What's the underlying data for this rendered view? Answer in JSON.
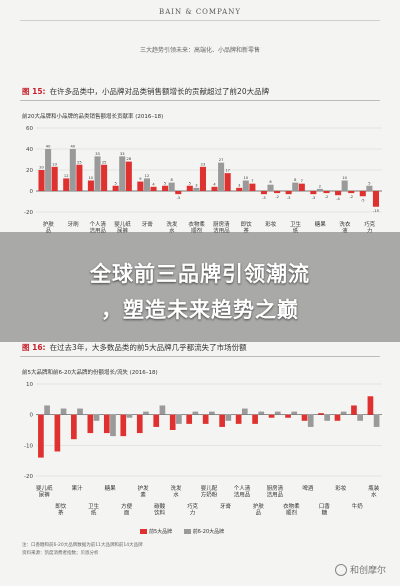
{
  "header": {
    "brand": "BAIN & COMPANY",
    "running_title": "三大趋势引领未来：高端化、小品牌和新零售"
  },
  "headline": {
    "line1": "全球前三品牌引领潮流",
    "line2": "，塑造未来趋势之巅"
  },
  "figure15": {
    "number": "图 15:",
    "title": "在许多品类中，小品牌对品类销售额增长的贡献超过了前20大品牌"
  },
  "figure16": {
    "number": "图 16:",
    "title": "在过去3年，大多数品类的前5大品牌几乎都流失了市场份额"
  },
  "legend": {
    "a": "前5大品牌",
    "b": "前6-20大品牌"
  },
  "sources": {
    "s1": "注：口香糖和前6-20大品牌数据为前11大品牌和前14大品牌",
    "s2": "资料来源：凯度消费者指数；贝恩分析"
  },
  "watermark": "和创摩尔",
  "colors": {
    "red": "#e03131",
    "gray": "#9a9a9a"
  },
  "chart_data": [
    {
      "type": "bar",
      "title": "前20大品牌和小品牌的品类销售额增长贡献率 (2016–18)",
      "categories": [
        "护肤品",
        "牙刷",
        "个人清洁用品",
        "婴儿纸尿裤",
        "牙膏",
        "洗发水",
        "衣物柔顺剂",
        "厨房清洁用品",
        "即饮茶",
        "彩妆",
        "卫生纸",
        "糖果",
        "洗衣液",
        "巧克力"
      ],
      "series": [
        {
          "name": "",
          "values": [
            20,
            12,
            10,
            5,
            9,
            5,
            5,
            4,
            3,
            -3,
            -3,
            -3,
            -4,
            -5
          ]
        },
        {
          "name": "",
          "values": [
            40,
            40,
            33,
            33,
            12,
            8,
            3,
            27,
            10,
            6,
            8,
            2,
            10,
            5
          ]
        },
        {
          "name": "",
          "values": [
            23,
            25,
            25,
            28,
            4,
            -3,
            23,
            17,
            7,
            -2,
            7,
            -2,
            -2,
            -15
          ]
        }
      ],
      "ylim": [
        -20,
        60
      ],
      "yticks": [
        -20,
        0,
        20,
        40,
        60
      ]
    },
    {
      "type": "bar",
      "title": "前5大品牌和前6-20大品牌的份额增长/流失 (2016–18)",
      "categories": [
        "婴儿纸尿裤",
        "即饮茶",
        "果汁",
        "卫生纸",
        "糖果",
        "方便面",
        "护发素",
        "碳酸饮料",
        "洗发水",
        "巧克力",
        "婴儿配方奶粉",
        "牙膏",
        "个人清洁用品",
        "护肤品",
        "厨房清洁用品",
        "衣物柔顺剂",
        "啤酒",
        "口香糖",
        "彩妆",
        "牛奶",
        "瓶装水"
      ],
      "series": [
        {
          "name": "前5大品牌",
          "values": [
            -14,
            -12,
            -8,
            -6,
            -6,
            -7,
            -6,
            -4,
            -5,
            -3,
            -3,
            -4,
            -3,
            -3,
            -1,
            -1,
            -2,
            0.5,
            -2,
            3,
            6
          ]
        },
        {
          "name": "前6-20大品牌",
          "values": [
            3,
            2,
            2,
            -2,
            -7,
            -1,
            1,
            3,
            -3,
            1,
            1,
            -2,
            2,
            1,
            1,
            1,
            -4,
            -2,
            1,
            -2,
            -4
          ]
        }
      ],
      "ylim": [
        -20,
        10
      ],
      "yticks": [
        -20,
        -10,
        0,
        10
      ]
    }
  ]
}
